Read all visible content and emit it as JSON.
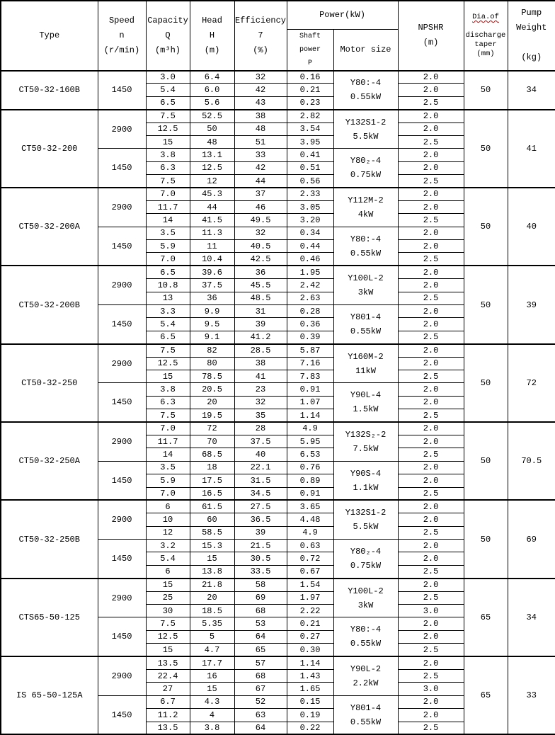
{
  "table": {
    "headers": {
      "type": "Type",
      "speed": "Speed\nn\n(r/min)",
      "capacity": "Capacity\nQ\n(m³h)",
      "head": "Head\nH\n(m)",
      "efficiency": "Efficiency\n7\n(%)",
      "power": "Power(kW)",
      "shaft_power": "Shaft power\nP",
      "motor_size": "Motor size",
      "npshr": "NPSHR\n(m)",
      "dia_line1": "Dia.of",
      "dia_rest": "discharge\ntaper\n(mm)",
      "weight": "Pump\nWeight\n\n(kg)"
    },
    "colors": {
      "border": "#000000",
      "text": "#000000",
      "spellcheck_squiggle": "#d00000",
      "background": "#ffffff"
    },
    "pumps": [
      {
        "type": "CT50-32-160B",
        "dia": "50",
        "weight": "34",
        "groups": [
          {
            "speed": "1450",
            "motor": "Y80:-4\n0.55kW",
            "rows": [
              [
                "3.0",
                "6.4",
                "32",
                "0.16",
                "2.0"
              ],
              [
                "5.4",
                "6.0",
                "42",
                "0.21",
                "2.0"
              ],
              [
                "6.5",
                "5.6",
                "43",
                "0.23",
                "2.5"
              ]
            ]
          }
        ]
      },
      {
        "type": "CT50-32-200",
        "dia": "50",
        "weight": "41",
        "groups": [
          {
            "speed": "2900",
            "motor": "Y132S1-2\n5.5kW",
            "rows": [
              [
                "7.5",
                "52.5",
                "38",
                "2.82",
                "2.0"
              ],
              [
                "12.5",
                "50",
                "48",
                "3.54",
                "2.0"
              ],
              [
                "15",
                "48",
                "51",
                "3.95",
                "2.5"
              ]
            ]
          },
          {
            "speed": "1450",
            "motor": "Y80₂-4\n0.75kW",
            "rows": [
              [
                "3.8",
                "13.1",
                "33",
                "0.41",
                "2.0"
              ],
              [
                "6.3",
                "12.5",
                "42",
                "0.51",
                "2.0"
              ],
              [
                "7.5",
                "12",
                "44",
                "0.56",
                "2.5"
              ]
            ]
          }
        ]
      },
      {
        "type": "CT50-32-200A",
        "dia": "50",
        "weight": "40",
        "groups": [
          {
            "speed": "2900",
            "motor": "Y112M-2\n4kW",
            "rows": [
              [
                "7.0",
                "45.3",
                "37",
                "2.33",
                "2.0"
              ],
              [
                "11.7",
                "44",
                "46",
                "3.05",
                "2.0"
              ],
              [
                "14",
                "41.5",
                "49.5",
                "3.20",
                "2.5"
              ]
            ]
          },
          {
            "speed": "1450",
            "motor": "Y80:-4\n0.55kW",
            "rows": [
              [
                "3.5",
                "11.3",
                "32",
                "0.34",
                "2.0"
              ],
              [
                "5.9",
                "11",
                "40.5",
                "0.44",
                "2.0"
              ],
              [
                "7.0",
                "10.4",
                "42.5",
                "0.46",
                "2.5"
              ]
            ]
          }
        ]
      },
      {
        "type": "CT50-32-200B",
        "dia": "50",
        "weight": "39",
        "groups": [
          {
            "speed": "2900",
            "motor": "Y100L-2\n3kW",
            "rows": [
              [
                "6.5",
                "39.6",
                "36",
                "1.95",
                "2.0"
              ],
              [
                "10.8",
                "37.5",
                "45.5",
                "2.42",
                "2.0"
              ],
              [
                "13",
                "36",
                "48.5",
                "2.63",
                "2.5"
              ]
            ]
          },
          {
            "speed": "1450",
            "motor": "Y801-4\n0.55kW",
            "rows": [
              [
                "3.3",
                "9.9",
                "31",
                "0.28",
                "2.0"
              ],
              [
                "5.4",
                "9.5",
                "39",
                "0.36",
                "2.0"
              ],
              [
                "6.5",
                "9.1",
                "41.2",
                "0.39",
                "2.5"
              ]
            ]
          }
        ]
      },
      {
        "type": "CT50-32-250",
        "dia": "50",
        "weight": "72",
        "groups": [
          {
            "speed": "2900",
            "motor": "Y160M-2\n11kW",
            "rows": [
              [
                "7.5",
                "82",
                "28.5",
                "5.87",
                "2.0"
              ],
              [
                "12.5",
                "80",
                "38",
                "7.16",
                "2.0"
              ],
              [
                "15",
                "78.5",
                "41",
                "7.83",
                "2.5"
              ]
            ]
          },
          {
            "speed": "1450",
            "motor": "Y90L-4\n1.5kW",
            "rows": [
              [
                "3.8",
                "20.5",
                "23",
                "0.91",
                "2.0"
              ],
              [
                "6.3",
                "20",
                "32",
                "1.07",
                "2.0"
              ],
              [
                "7.5",
                "19.5",
                "35",
                "1.14",
                "2.5"
              ]
            ]
          }
        ]
      },
      {
        "type": "CT50-32-250A",
        "dia": "50",
        "weight": "70.5",
        "groups": [
          {
            "speed": "2900",
            "motor": "Y132S₂-2\n7.5kW",
            "rows": [
              [
                "7.0",
                "72",
                "28",
                "4.9",
                "2.0"
              ],
              [
                "11.7",
                "70",
                "37.5",
                "5.95",
                "2.0"
              ],
              [
                "14",
                "68.5",
                "40",
                "6.53",
                "2.5"
              ]
            ]
          },
          {
            "speed": "1450",
            "motor": "Y90S-4\n1.1kW",
            "rows": [
              [
                "3.5",
                "18",
                "22.1",
                "0.76",
                "2.0"
              ],
              [
                "5.9",
                "17.5",
                "31.5",
                "0.89",
                "2.0"
              ],
              [
                "7.0",
                "16.5",
                "34.5",
                "0.91",
                "2.5"
              ]
            ]
          }
        ]
      },
      {
        "type": "CT50-32-250B",
        "dia": "50",
        "weight": "69",
        "groups": [
          {
            "speed": "2900",
            "motor": "Y132S1-2\n5.5kW",
            "rows": [
              [
                "6",
                "61.5",
                "27.5",
                "3.65",
                "2.0"
              ],
              [
                "10",
                "60",
                "36.5",
                "4.48",
                "2.0"
              ],
              [
                "12",
                "58.5",
                "39",
                "4.9",
                "2.5"
              ]
            ]
          },
          {
            "speed": "1450",
            "motor": "Y80₂-4\n0.75kW",
            "rows": [
              [
                "3.2",
                "15.3",
                "21.5",
                "0.63",
                "2.0"
              ],
              [
                "5.4",
                "15",
                "30.5",
                "0.72",
                "2.0"
              ],
              [
                "6",
                "13.8",
                "33.5",
                "0.67",
                "2.5"
              ]
            ]
          }
        ]
      },
      {
        "type": "CTS65-50-125",
        "dia": "65",
        "weight": "34",
        "groups": [
          {
            "speed": "2900",
            "motor": "Y100L-2\n3kW",
            "rows": [
              [
                "15",
                "21.8",
                "58",
                "1.54",
                "2.0"
              ],
              [
                "25",
                "20",
                "69",
                "1.97",
                "2.5"
              ],
              [
                "30",
                "18.5",
                "68",
                "2.22",
                "3.0"
              ]
            ]
          },
          {
            "speed": "1450",
            "motor": "Y80:-4\n0.55kW",
            "rows": [
              [
                "7.5",
                "5.35",
                "53",
                "0.21",
                "2.0"
              ],
              [
                "12.5",
                "5",
                "64",
                "0.27",
                "2.0"
              ],
              [
                "15",
                "4.7",
                "65",
                "0.30",
                "2.5"
              ]
            ]
          }
        ]
      },
      {
        "type": "IS 65-50-125A",
        "dia": "65",
        "weight": "33",
        "groups": [
          {
            "speed": "2900",
            "motor": "Y90L-2\n2.2kW",
            "rows": [
              [
                "13.5",
                "17.7",
                "57",
                "1.14",
                "2.0"
              ],
              [
                "22.4",
                "16",
                "68",
                "1.43",
                "2.5"
              ],
              [
                "27",
                "15",
                "67",
                "1.65",
                "3.0"
              ]
            ]
          },
          {
            "speed": "1450",
            "motor": "Y801-4\n0.55kW",
            "rows": [
              [
                "6.7",
                "4.3",
                "52",
                "0.15",
                "2.0"
              ],
              [
                "11.2",
                "4",
                "63",
                "0.19",
                "2.0"
              ],
              [
                "13.5",
                "3.8",
                "64",
                "0.22",
                "2.5"
              ]
            ]
          }
        ]
      }
    ]
  }
}
